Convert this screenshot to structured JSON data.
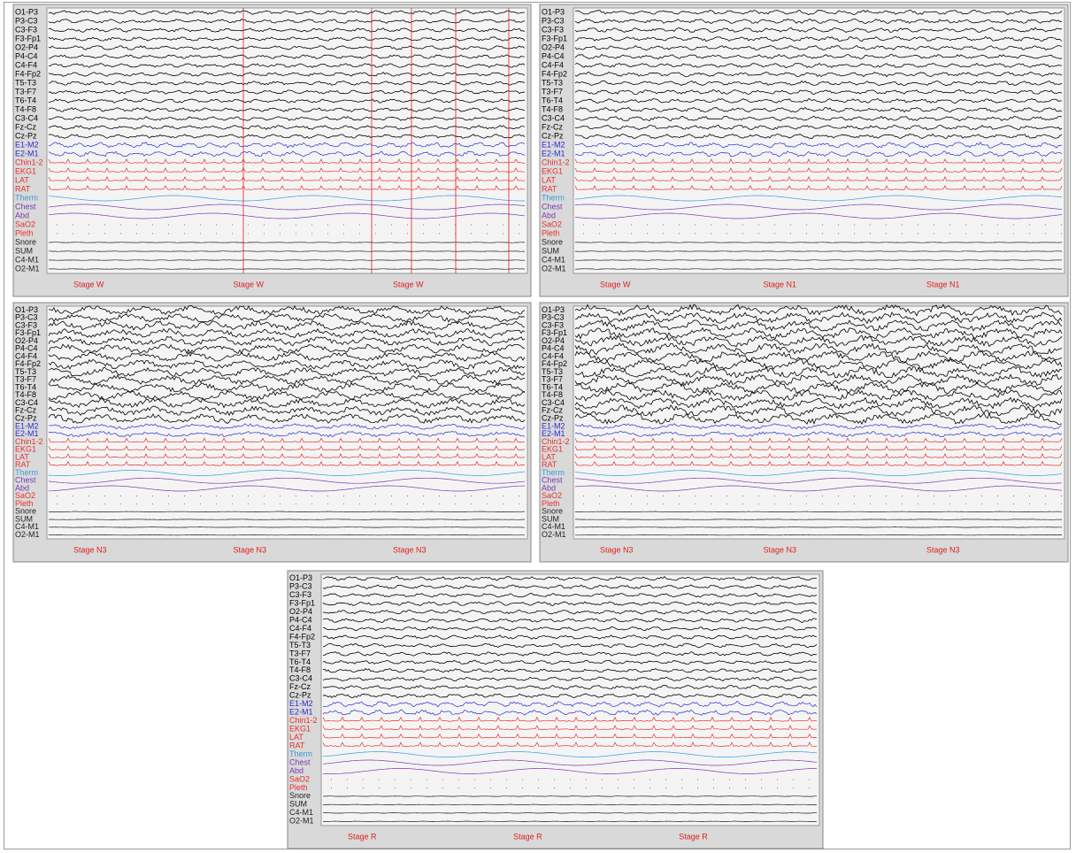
{
  "channels": [
    "O1-P3",
    "P3-C3",
    "C3-F3",
    "F3-Fp1",
    "O2-P4",
    "P4-C4",
    "C4-F4",
    "F4-Fp2",
    "T5-T3",
    "T3-F7",
    "T6-T4",
    "T4-F8",
    "C3-C4",
    "Fz-Cz",
    "Cz-Pz",
    "E1-M2",
    "E2-M1",
    "Chin1-2",
    "EKG1",
    "LAT",
    "RAT",
    "Therm",
    "Chest",
    "Abd",
    "SaO2",
    "Pleth",
    "Snore",
    "SUM",
    "C4-M1",
    "O2-M1"
  ],
  "panels": [
    {
      "stages": [
        "Stage W",
        "Stage W",
        "Stage W"
      ]
    },
    {
      "stages": [
        "Stage W",
        "Stage N1",
        "Stage N1"
      ]
    },
    {
      "stages": [
        "Stage N3",
        "Stage N3",
        "Stage N3"
      ]
    },
    {
      "stages": [
        "Stage N3",
        "Stage N3",
        "Stage N3"
      ]
    },
    {
      "stages": [
        "Stage R",
        "Stage R",
        "Stage R"
      ]
    }
  ]
}
